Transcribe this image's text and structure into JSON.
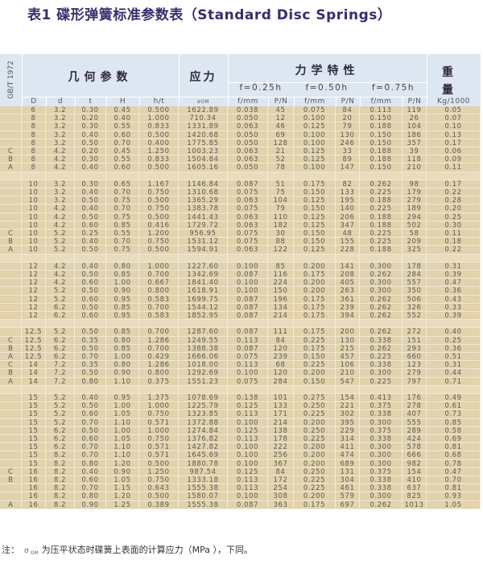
{
  "title": "表1  碟形弹簧标准参数表（Standard Disc Springs）",
  "header": {
    "standard": "GB/T 1972",
    "geometry": "几何参数",
    "stress": "应力",
    "mechanics": "力学特性",
    "weight": "重量",
    "f025": "f=0.25h",
    "f050": "f=0.50h",
    "f075": "f=0.75h",
    "columns": [
      "D",
      "d",
      "t",
      "H",
      "h/t",
      "σOM",
      "f/mm",
      "P/N",
      "f/mm",
      "P/N",
      "f/mm",
      "P/N",
      "Kg/1000"
    ]
  },
  "colors": {
    "title": "#3b2c6e",
    "header_bg": "#dde7f2",
    "row_bg": "#e2d2ad"
  },
  "groups": [
    [
      [
        "",
        "6",
        "3.2",
        "0.30",
        "0.45",
        "0.500",
        "1622.89",
        "0.038",
        "45",
        "0.075",
        "84",
        "0.113",
        "119",
        "0.05"
      ],
      [
        "",
        "8",
        "3.2",
        "0.20",
        "0.40",
        "1.000",
        "710.34",
        "0.050",
        "12",
        "0.100",
        "20",
        "0.150",
        "26",
        "0.07"
      ],
      [
        "",
        "8",
        "3.2",
        "0.30",
        "0.55",
        "0.833",
        "1331.89",
        "0.063",
        "46",
        "0.125",
        "79",
        "0.188",
        "104",
        "0.10"
      ],
      [
        "",
        "8",
        "3.2",
        "0.40",
        "0.60",
        "0.500",
        "1420.68",
        "0.050",
        "69",
        "0.100",
        "130",
        "0.150",
        "186",
        "0.13"
      ],
      [
        "",
        "8",
        "3.2",
        "0.50",
        "0.70",
        "0.400",
        "1775.85",
        "0.050",
        "128",
        "0.100",
        "246",
        "0.150",
        "357",
        "0.17"
      ],
      [
        "C",
        "8",
        "4.2",
        "0.20",
        "0.45",
        "1.250",
        "1003.23",
        "0.063",
        "21",
        "0.125",
        "33",
        "0.188",
        "39",
        "0.06"
      ],
      [
        "B",
        "8",
        "4.2",
        "0.30",
        "0.55",
        "0.833",
        "1504.84",
        "0.063",
        "52",
        "0.125",
        "89",
        "0.188",
        "118",
        "0.09"
      ],
      [
        "A",
        "8",
        "4.2",
        "0.40",
        "0.60",
        "0.500",
        "1605.16",
        "0.050",
        "78",
        "0.100",
        "147",
        "0.150",
        "210",
        "0.11"
      ]
    ],
    [
      [
        "",
        "10",
        "3.2",
        "0.30",
        "0.65",
        "1.167",
        "1146.84",
        "0.087",
        "51",
        "0.175",
        "82",
        "0.262",
        "98",
        "0.17"
      ],
      [
        "",
        "10",
        "3.2",
        "0.40",
        "0.70",
        "0.750",
        "1310.68",
        "0.075",
        "75",
        "0.150",
        "133",
        "0.225",
        "179",
        "0.22"
      ],
      [
        "",
        "10",
        "3.2",
        "0.50",
        "0.75",
        "0.500",
        "1365.29",
        "0.063",
        "104",
        "0.125",
        "195",
        "0.188",
        "279",
        "0.28"
      ],
      [
        "",
        "10",
        "4.2",
        "0.40",
        "0.70",
        "0.750",
        "1383.78",
        "0.075",
        "79",
        "0.150",
        "140",
        "0.225",
        "189",
        "0.20"
      ],
      [
        "",
        "10",
        "4.2",
        "0.50",
        "0.75",
        "0.500",
        "1441.43",
        "0.063",
        "110",
        "0.125",
        "206",
        "0.188",
        "294",
        "0.25"
      ],
      [
        "",
        "10",
        "4.2",
        "0.60",
        "0.85",
        "0.416",
        "1729.72",
        "0.063",
        "182",
        "0.125",
        "347",
        "0.188",
        "502",
        "0.30"
      ],
      [
        "C",
        "10",
        "5.2",
        "0.25",
        "0.55",
        "1.200",
        "956.95",
        "0.075",
        "30",
        "0.150",
        "48",
        "0.225",
        "58",
        "0.11"
      ],
      [
        "B",
        "10",
        "5.2",
        "0.40",
        "0.70",
        "0.750",
        "1531.12",
        "0.075",
        "88",
        "0.150",
        "155",
        "0.225",
        "209",
        "0.18"
      ],
      [
        "A",
        "10",
        "5.2",
        "0.50",
        "0.75",
        "0.500",
        "1594.91",
        "0.063",
        "122",
        "0.125",
        "228",
        "0.188",
        "325",
        "0.22"
      ]
    ],
    [
      [
        "",
        "12",
        "4.2",
        "0.40",
        "0.80",
        "1.000",
        "1227.60",
        "0.100",
        "85",
        "0.200",
        "141",
        "0.300",
        "178",
        "0.31"
      ],
      [
        "",
        "12",
        "4.2",
        "0.50",
        "0.85",
        "0.700",
        "1342.69",
        "0.087",
        "116",
        "0.175",
        "208",
        "0.262",
        "284",
        "0.39"
      ],
      [
        "",
        "12",
        "4.2",
        "0.60",
        "1.00",
        "0.667",
        "1841.40",
        "0.100",
        "224",
        "0.200",
        "405",
        "0.300",
        "557",
        "0.47"
      ],
      [
        "",
        "12",
        "5.2",
        "0.50",
        "0.90",
        "0.800",
        "1618.91",
        "0.100",
        "150",
        "0.200",
        "263",
        "0.300",
        "350",
        "0.36"
      ],
      [
        "",
        "12",
        "5.2",
        "0.60",
        "0.95",
        "0.583",
        "1699.75",
        "0.087",
        "196",
        "0.175",
        "361",
        "0.262",
        "506",
        "0.43"
      ],
      [
        "",
        "12",
        "6.2",
        "0.50",
        "0.85",
        "0.700",
        "1544.12",
        "0.087",
        "134",
        "0.175",
        "239",
        "0.262",
        "326",
        "0.33"
      ],
      [
        "",
        "12",
        "6.2",
        "0.60",
        "0.95",
        "0.583",
        "1852.95",
        "0.087",
        "214",
        "0.175",
        "394",
        "0.262",
        "552",
        "0.39"
      ]
    ],
    [
      [
        "",
        "12.5",
        "5.2",
        "0.50",
        "0.85",
        "0.700",
        "1287.60",
        "0.087",
        "111",
        "0.175",
        "200",
        "0.262",
        "272",
        "0.40"
      ],
      [
        "C",
        "12.5",
        "6.2",
        "0.35",
        "0.80",
        "1.286",
        "1249.55",
        "0.113",
        "84",
        "0.225",
        "130",
        "0.338",
        "151",
        "0.25"
      ],
      [
        "B",
        "12.5",
        "6.2",
        "0.50",
        "0.85",
        "0.700",
        "1388.38",
        "0.087",
        "120",
        "0.175",
        "215",
        "0.262",
        "293",
        "0.36"
      ],
      [
        "A",
        "12.5",
        "6.2",
        "0.70",
        "1.00",
        "0.429",
        "1666.06",
        "0.075",
        "239",
        "0.150",
        "457",
        "0.225",
        "660",
        "0.51"
      ],
      [
        "C",
        "14",
        "7.2",
        "0.35",
        "0.80",
        "1.286",
        "1018.00",
        "0.113",
        "68",
        "0.225",
        "106",
        "0.338",
        "123",
        "0.31"
      ],
      [
        "B",
        "14",
        "7.2",
        "0.50",
        "0.90",
        "0.800",
        "1292.69",
        "0.100",
        "120",
        "0.200",
        "210",
        "0.300",
        "279",
        "0.44"
      ],
      [
        "A",
        "14",
        "7.2",
        "0.80",
        "1.10",
        "0.375",
        "1551.23",
        "0.075",
        "284",
        "0.150",
        "547",
        "0.225",
        "797",
        "0.71"
      ]
    ],
    [
      [
        "",
        "15",
        "5.2",
        "0.40",
        "0.95",
        "1.375",
        "1078.69",
        "0.138",
        "101",
        "0.275",
        "154",
        "0.413",
        "176",
        "0.49"
      ],
      [
        "",
        "15",
        "5.2",
        "0.50",
        "1.00",
        "1.000",
        "1225.79",
        "0.125",
        "133",
        "0.250",
        "221",
        "0.375",
        "278",
        "0.61"
      ],
      [
        "",
        "15",
        "5.2",
        "0.60",
        "1.05",
        "0.750",
        "1323.85",
        "0.113",
        "171",
        "0.225",
        "302",
        "0.338",
        "407",
        "0.73"
      ],
      [
        "",
        "15",
        "5.2",
        "0.70",
        "1.10",
        "0.571",
        "1372.88",
        "0.100",
        "214",
        "0.200",
        "395",
        "0.300",
        "555",
        "0.85"
      ],
      [
        "",
        "15",
        "6.2",
        "0.50",
        "1.00",
        "1.000",
        "1274.84",
        "0.125",
        "138",
        "0.250",
        "229",
        "0.375",
        "289",
        "0.58"
      ],
      [
        "",
        "15",
        "6.2",
        "0.60",
        "1.05",
        "0.750",
        "1376.82",
        "0.113",
        "178",
        "0.225",
        "314",
        "0.338",
        "424",
        "0.69"
      ],
      [
        "",
        "15",
        "6.2",
        "0.70",
        "1.10",
        "0.571",
        "1427.82",
        "0.100",
        "222",
        "0.200",
        "411",
        "0.300",
        "578",
        "0.81"
      ],
      [
        "",
        "15",
        "8.2",
        "0.70",
        "1.10",
        "0.571",
        "1645.69",
        "0.100",
        "256",
        "0.200",
        "474",
        "0.300",
        "666",
        "0.68"
      ],
      [
        "",
        "15",
        "8.2",
        "0.80",
        "1.20",
        "0.500",
        "1880.78",
        "0.100",
        "367",
        "0.200",
        "689",
        "0.300",
        "982",
        "0.78"
      ],
      [
        "C",
        "16",
        "8.2",
        "0.40",
        "0.90",
        "1.250",
        "987.54",
        "0.125",
        "84",
        "0.250",
        "131",
        "0.375",
        "154",
        "0.47"
      ],
      [
        "B",
        "16",
        "8.2",
        "0.60",
        "1.05",
        "0.750",
        "1333.18",
        "0.113",
        "172",
        "0.225",
        "304",
        "0.338",
        "410",
        "0.70"
      ],
      [
        "",
        "16",
        "8.2",
        "0.70",
        "1.15",
        "0.643",
        "1555.38",
        "0.113",
        "254",
        "0.225",
        "461",
        "0.338",
        "637",
        "0.81"
      ],
      [
        "",
        "16",
        "8.2",
        "0.80",
        "1.20",
        "0.500",
        "1580.07",
        "0.100",
        "308",
        "0.200",
        "579",
        "0.300",
        "825",
        "0.93"
      ],
      [
        "A",
        "16",
        "8.2",
        "0.90",
        "1.25",
        "0.389",
        "1555.38",
        "0.087",
        "363",
        "0.175",
        "697",
        "0.262",
        "1013",
        "1.05"
      ]
    ]
  ],
  "note": {
    "prefix": "注：",
    "symbol": "σ",
    "subscript": "OM",
    "text": "为压平状态时碟簧上表面的计算应力（MPa   ），下同。"
  }
}
